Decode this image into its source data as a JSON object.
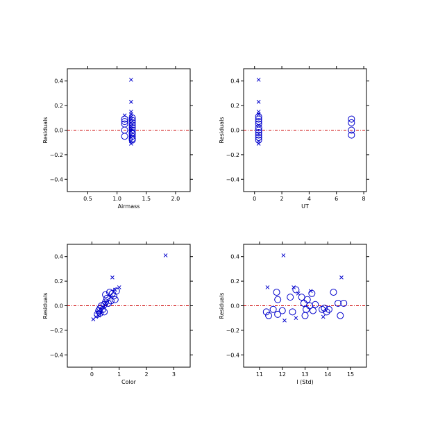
{
  "colors": {
    "marker": "#0000cc",
    "zero_line": "#cc0000",
    "axis": "#000000",
    "background": "#ffffff"
  },
  "chart_data": [
    {
      "type": "scatter",
      "id": "airmass",
      "xlabel": "Airmass",
      "ylabel": "Residuals",
      "xlim": [
        0.15,
        2.25
      ],
      "ylim": [
        -0.5,
        0.5
      ],
      "xticks": [
        0.5,
        1.0,
        1.5,
        2.0
      ],
      "xtick_labels": [
        "0.5",
        "1.0",
        "1.5",
        "2.0"
      ],
      "yticks": [
        -0.4,
        -0.2,
        0.0,
        0.2,
        0.4
      ],
      "ytick_labels": [
        "−0.4",
        "−0.2",
        "0.0",
        "0.2",
        "0.4"
      ],
      "zero_line": 0.0,
      "series": [
        {
          "marker": "circle",
          "points": [
            [
              1.13,
              0.09
            ],
            [
              1.13,
              0.07
            ],
            [
              1.13,
              0.05
            ],
            [
              1.13,
              0.0
            ],
            [
              1.13,
              -0.05
            ],
            [
              1.26,
              0.1
            ],
            [
              1.26,
              0.08
            ],
            [
              1.26,
              0.06
            ],
            [
              1.26,
              0.04
            ],
            [
              1.26,
              0.02
            ],
            [
              1.26,
              0.0
            ],
            [
              1.26,
              -0.02
            ],
            [
              1.26,
              -0.03
            ],
            [
              1.26,
              -0.05
            ],
            [
              1.26,
              -0.07
            ],
            [
              1.26,
              -0.08
            ]
          ]
        },
        {
          "marker": "cross",
          "points": [
            [
              1.13,
              0.12
            ],
            [
              1.24,
              0.41
            ],
            [
              1.24,
              0.23
            ],
            [
              1.24,
              0.15
            ],
            [
              1.24,
              0.13
            ],
            [
              1.24,
              0.11
            ],
            [
              1.24,
              0.09
            ],
            [
              1.24,
              0.06
            ],
            [
              1.24,
              0.03
            ],
            [
              1.24,
              0.01
            ],
            [
              1.24,
              -0.01
            ],
            [
              1.24,
              -0.04
            ],
            [
              1.24,
              -0.06
            ],
            [
              1.24,
              -0.09
            ],
            [
              1.24,
              -0.11
            ]
          ]
        }
      ]
    },
    {
      "type": "scatter",
      "id": "ut",
      "xlabel": "UT",
      "ylabel": "Residuals",
      "xlim": [
        -0.8,
        8.2
      ],
      "ylim": [
        -0.5,
        0.5
      ],
      "xticks": [
        0,
        2,
        4,
        6,
        8
      ],
      "xtick_labels": [
        "0",
        "2",
        "4",
        "6",
        "8"
      ],
      "yticks": [
        -0.4,
        -0.2,
        0.0,
        0.2,
        0.4
      ],
      "ytick_labels": [
        "−0.4",
        "−0.2",
        "0.0",
        "0.2",
        "0.4"
      ],
      "zero_line": 0.0,
      "series": [
        {
          "marker": "circle",
          "points": [
            [
              0.3,
              0.11
            ],
            [
              0.3,
              0.09
            ],
            [
              0.3,
              0.07
            ],
            [
              0.3,
              0.05
            ],
            [
              0.3,
              0.02
            ],
            [
              0.3,
              0.0
            ],
            [
              0.3,
              -0.02
            ],
            [
              0.3,
              -0.04
            ],
            [
              0.3,
              -0.06
            ],
            [
              0.3,
              -0.08
            ],
            [
              7.1,
              0.09
            ],
            [
              7.1,
              0.06
            ],
            [
              7.1,
              0.0
            ],
            [
              7.1,
              -0.04
            ]
          ]
        },
        {
          "marker": "cross",
          "points": [
            [
              0.3,
              0.41
            ],
            [
              0.3,
              0.23
            ],
            [
              0.3,
              0.15
            ],
            [
              0.3,
              0.13
            ],
            [
              0.3,
              0.04
            ],
            [
              0.3,
              -0.03
            ],
            [
              0.3,
              -0.09
            ],
            [
              0.3,
              -0.11
            ]
          ]
        }
      ]
    },
    {
      "type": "scatter",
      "id": "color",
      "xlabel": "Color",
      "ylabel": "Residuals",
      "xlim": [
        -0.9,
        3.6
      ],
      "ylim": [
        -0.5,
        0.5
      ],
      "xticks": [
        0,
        1,
        2,
        3
      ],
      "xtick_labels": [
        "0",
        "1",
        "2",
        "3"
      ],
      "yticks": [
        -0.4,
        -0.2,
        0.0,
        0.2,
        0.4
      ],
      "ytick_labels": [
        "−0.4",
        "−0.2",
        "0.0",
        "0.2",
        "0.4"
      ],
      "zero_line": 0.0,
      "series": [
        {
          "marker": "circle",
          "points": [
            [
              0.2,
              -0.07
            ],
            [
              0.25,
              -0.04
            ],
            [
              0.3,
              -0.06
            ],
            [
              0.3,
              -0.02
            ],
            [
              0.35,
              0.0
            ],
            [
              0.4,
              -0.03
            ],
            [
              0.45,
              0.01
            ],
            [
              0.45,
              -0.05
            ],
            [
              0.5,
              0.03
            ],
            [
              0.5,
              0.09
            ],
            [
              0.55,
              0.06
            ],
            [
              0.6,
              0.02
            ],
            [
              0.65,
              0.11
            ],
            [
              0.7,
              0.04
            ],
            [
              0.75,
              0.1
            ],
            [
              0.8,
              0.08
            ],
            [
              0.85,
              0.05
            ],
            [
              0.9,
              0.12
            ]
          ]
        },
        {
          "marker": "cross",
          "points": [
            [
              0.05,
              -0.11
            ],
            [
              0.15,
              -0.09
            ],
            [
              0.2,
              -0.05
            ],
            [
              0.25,
              -0.08
            ],
            [
              0.3,
              -0.03
            ],
            [
              0.35,
              -0.06
            ],
            [
              0.4,
              -0.01
            ],
            [
              0.5,
              0.02
            ],
            [
              0.7,
              0.07
            ],
            [
              0.75,
              0.23
            ],
            [
              0.85,
              0.13
            ],
            [
              1.0,
              0.15
            ],
            [
              2.7,
              0.41
            ]
          ]
        }
      ]
    },
    {
      "type": "scatter",
      "id": "istd",
      "xlabel": "I (Std)",
      "ylabel": "Residuals",
      "xlim": [
        10.3,
        15.7
      ],
      "ylim": [
        -0.5,
        0.5
      ],
      "xticks": [
        11,
        12,
        13,
        14,
        15
      ],
      "xtick_labels": [
        "11",
        "12",
        "13",
        "14",
        "15"
      ],
      "yticks": [
        -0.4,
        -0.2,
        0.0,
        0.2,
        0.4
      ],
      "ytick_labels": [
        "−0.4",
        "−0.2",
        "0.0",
        "0.2",
        "0.4"
      ],
      "zero_line": 0.0,
      "series": [
        {
          "marker": "circle",
          "points": [
            [
              11.3,
              -0.05
            ],
            [
              11.4,
              -0.08
            ],
            [
              11.6,
              -0.03
            ],
            [
              11.75,
              0.11
            ],
            [
              11.8,
              0.05
            ],
            [
              11.8,
              -0.07
            ],
            [
              12.0,
              -0.04
            ],
            [
              12.35,
              0.07
            ],
            [
              12.45,
              -0.05
            ],
            [
              12.6,
              0.13
            ],
            [
              12.85,
              0.07
            ],
            [
              12.95,
              0.02
            ],
            [
              13.0,
              -0.08
            ],
            [
              13.05,
              -0.03
            ],
            [
              13.1,
              0.05
            ],
            [
              13.2,
              0.0
            ],
            [
              13.3,
              0.1
            ],
            [
              13.35,
              -0.04
            ],
            [
              13.45,
              0.01
            ],
            [
              13.75,
              -0.03
            ],
            [
              13.85,
              -0.02
            ],
            [
              13.95,
              -0.05
            ],
            [
              14.05,
              -0.03
            ],
            [
              14.25,
              0.11
            ],
            [
              14.45,
              0.02
            ],
            [
              14.55,
              -0.08
            ],
            [
              14.7,
              0.02
            ]
          ]
        },
        {
          "marker": "cross",
          "points": [
            [
              11.35,
              0.15
            ],
            [
              12.05,
              0.41
            ],
            [
              12.1,
              -0.12
            ],
            [
              12.5,
              0.15
            ],
            [
              12.6,
              -0.1
            ],
            [
              12.7,
              0.1
            ],
            [
              13.25,
              0.12
            ],
            [
              13.8,
              -0.09
            ],
            [
              14.6,
              0.23
            ]
          ]
        }
      ]
    }
  ]
}
